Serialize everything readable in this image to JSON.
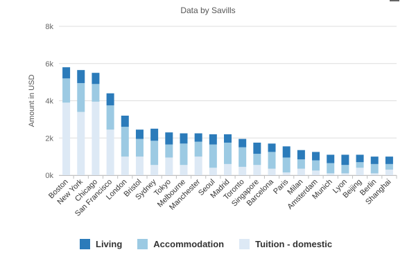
{
  "chart_data": {
    "type": "bar",
    "stacked": true,
    "title": "",
    "subtitle": "Data by Savills",
    "xlabel": "",
    "ylabel": "Amount in USD",
    "ylim": [
      0,
      8000
    ],
    "y_ticks": [
      0,
      2000,
      4000,
      6000,
      8000
    ],
    "y_tick_labels": [
      "0k",
      "2k",
      "4k",
      "6k",
      "8k"
    ],
    "categories": [
      "Boston",
      "New York",
      "Chicago",
      "San Francisco",
      "London",
      "Bristol",
      "Sydney",
      "Tokyo",
      "Melbourne",
      "Manchester",
      "Seoul",
      "Madrid",
      "Toronto",
      "Singapore",
      "Barcelona",
      "Paris",
      "Milan",
      "Amsterdam",
      "Munich",
      "Lyon",
      "Beijing",
      "Berlin",
      "Shanghai"
    ],
    "series": [
      {
        "name": "Tuition - domestic",
        "color": "#dde9f5",
        "values": [
          3900,
          3400,
          3950,
          2450,
          1000,
          1000,
          550,
          950,
          550,
          1000,
          400,
          600,
          450,
          550,
          350,
          150,
          350,
          250,
          100,
          100,
          400,
          100,
          300
        ]
      },
      {
        "name": "Accommodation",
        "color": "#9ccae3",
        "values": [
          1300,
          1550,
          950,
          1300,
          1600,
          950,
          1300,
          700,
          1150,
          800,
          1250,
          1150,
          1050,
          600,
          900,
          800,
          500,
          550,
          550,
          450,
          300,
          500,
          300
        ]
      },
      {
        "name": "Living",
        "color": "#2b7bba",
        "values": [
          600,
          700,
          600,
          650,
          600,
          500,
          650,
          650,
          550,
          450,
          550,
          450,
          450,
          600,
          450,
          600,
          500,
          450,
          450,
          550,
          400,
          400,
          400
        ]
      }
    ],
    "legend": [
      "Living",
      "Accommodation",
      "Tuition - domestic"
    ],
    "legend_position": "bottom-left",
    "grid": true
  },
  "header": {
    "subtitle": "Data by Savills"
  },
  "colors": {
    "living": "#2b7bba",
    "accommodation": "#9ccae3",
    "tuition": "#dde9f5",
    "grid": "#dddddd"
  }
}
